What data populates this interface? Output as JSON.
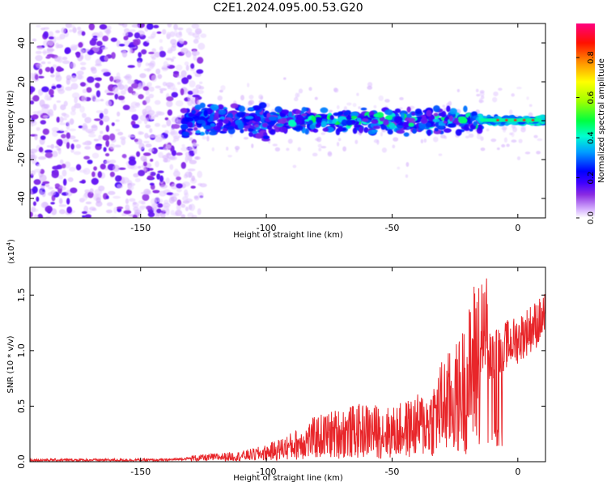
{
  "title": "C2E1.2024.095.00.53.G20",
  "chart_data": [
    {
      "type": "heatmap",
      "xlabel": "Height of straight line (km)",
      "ylabel": "Frequency (Hz)",
      "xlim": [
        -194,
        11
      ],
      "ylim": [
        -50,
        50
      ],
      "x_ticks": [
        -150,
        -100,
        -50,
        0
      ],
      "y_ticks": [
        -40,
        -20,
        0,
        20,
        40
      ],
      "colorbar": {
        "label": "Normalized spectral amplitude",
        "range": [
          0,
          0.97
        ],
        "ticks": [
          0.0,
          0.2,
          0.4,
          0.6,
          0.8
        ],
        "colormap": [
          "#ffffff",
          "#e2c8ff",
          "#8a2be2",
          "#3f00ff",
          "#0000ff",
          "#00c8ff",
          "#00ffaa",
          "#00ff00",
          "#c8ff00",
          "#ffff00",
          "#ff8000",
          "#ff0000",
          "#ff0080"
        ]
      },
      "description_of_structure": {
        "noise_region_x": [
          -194,
          -130
        ],
        "signal_band_center_hz": 0,
        "signal_band_x": [
          -133,
          11
        ],
        "peak_region_x": [
          -14,
          9
        ]
      },
      "grid": false
    },
    {
      "type": "line",
      "xlabel": "Height of straight line (km)",
      "ylabel": "SNR (10 * v/v)",
      "y_scale_label": "(x10",
      "y_scale_exp": "4",
      "y_scale_close": ")",
      "xlim": [
        -194,
        11
      ],
      "ylim": [
        0,
        1.75
      ],
      "x_ticks": [
        -150,
        -100,
        -50,
        0
      ],
      "y_ticks": [
        0.0,
        0.5,
        1.0,
        1.5
      ],
      "series": [
        {
          "color": "#e8262a",
          "x": [
            -194,
            -180,
            -160,
            -140,
            -130,
            -120,
            -110,
            -100,
            -90,
            -80,
            -70,
            -60,
            -50,
            -40,
            -35,
            -30,
            -25,
            -20,
            -17,
            -14,
            -12,
            -10,
            -5,
            0,
            5,
            11
          ],
          "y": [
            0.015,
            0.015,
            0.015,
            0.015,
            0.03,
            0.04,
            0.05,
            0.08,
            0.14,
            0.22,
            0.26,
            0.28,
            0.26,
            0.32,
            0.35,
            0.5,
            0.55,
            0.7,
            0.9,
            1.0,
            0.95,
            0.95,
            1.05,
            1.1,
            1.2,
            1.3
          ]
        }
      ],
      "grid": false
    }
  ]
}
